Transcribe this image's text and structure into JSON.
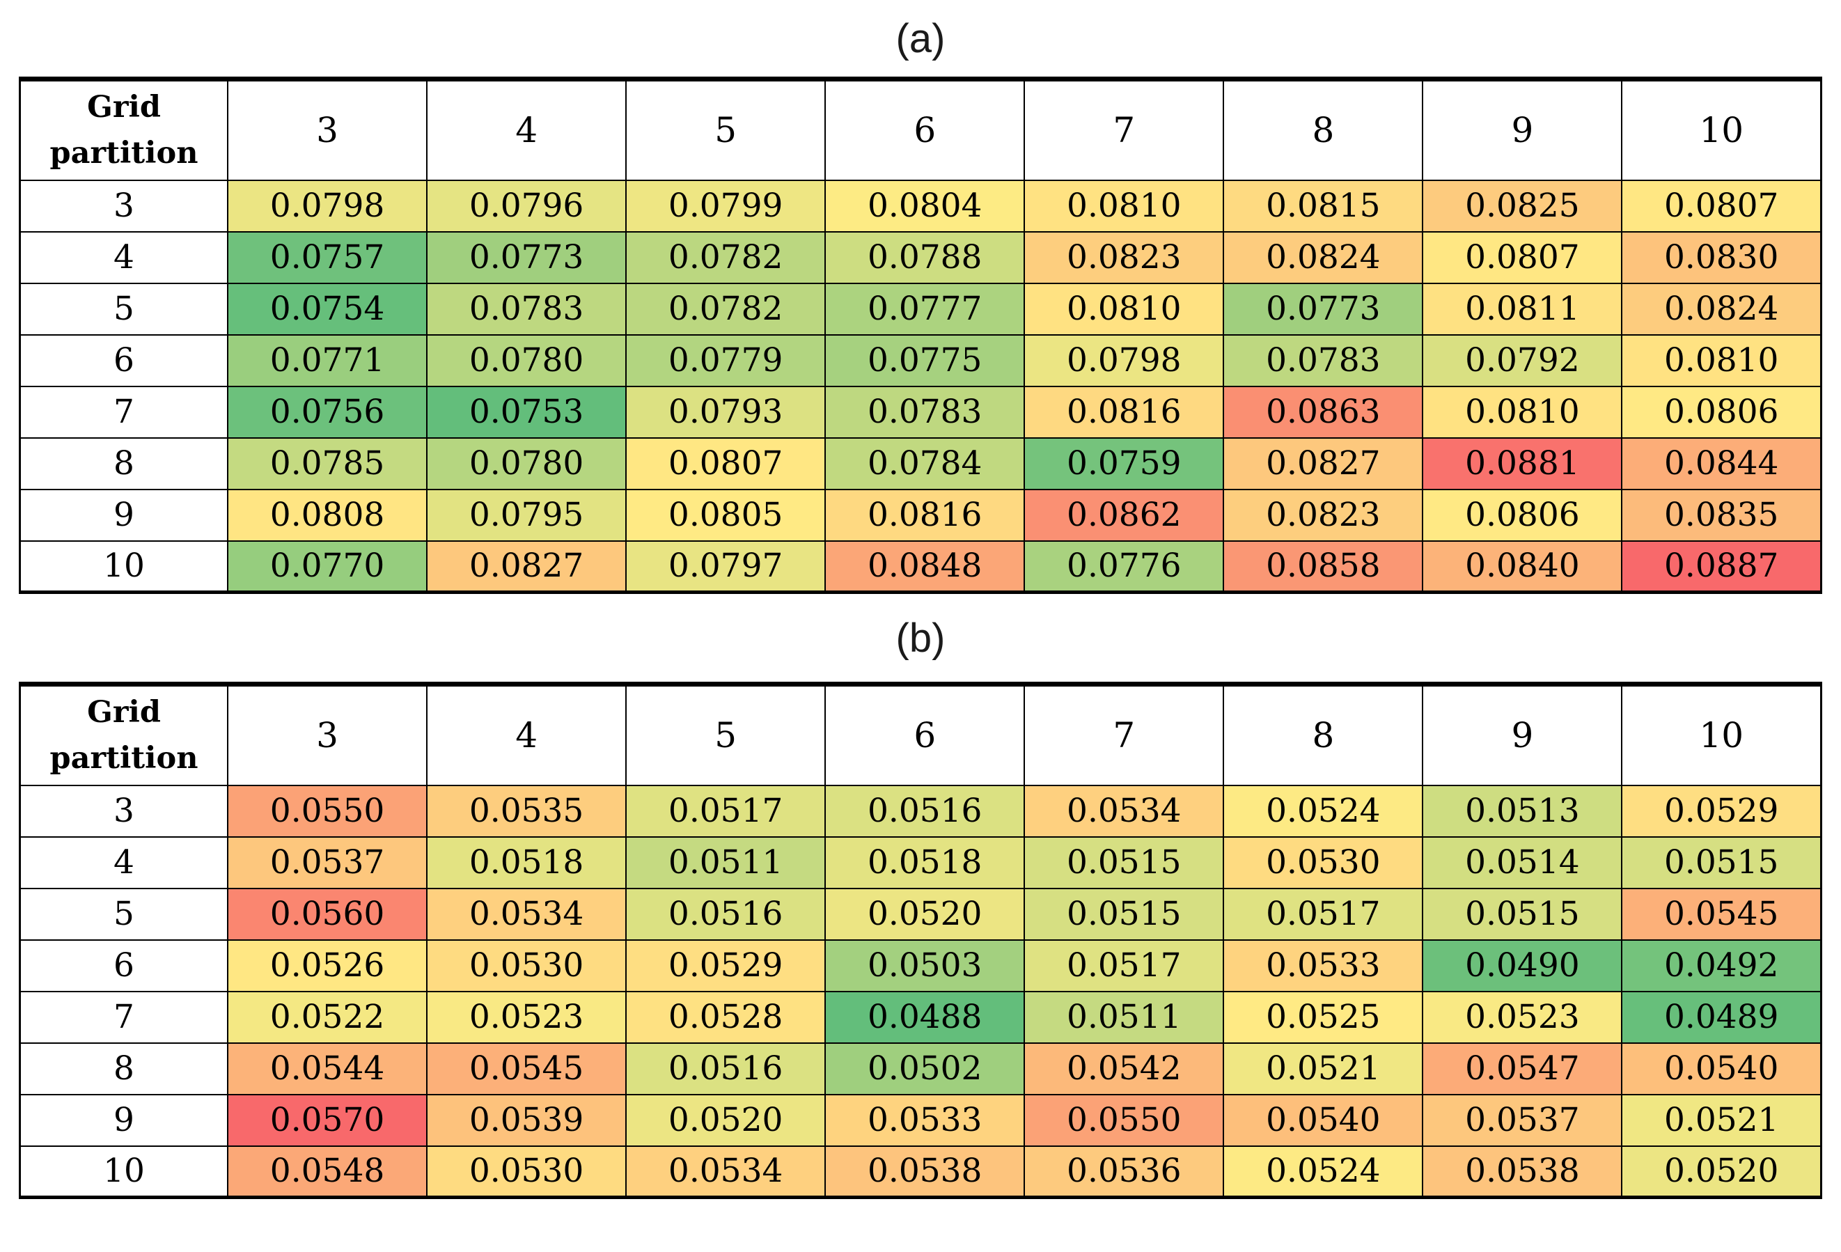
{
  "figure": {
    "label_a": "(a)",
    "label_b": "(b)"
  },
  "chart_data": [
    {
      "type": "heatmap",
      "title": "(a)",
      "corner_label": "Grid partition",
      "columns": [
        "3",
        "4",
        "5",
        "6",
        "7",
        "8",
        "9",
        "10"
      ],
      "rows": [
        "3",
        "4",
        "5",
        "6",
        "7",
        "8",
        "9",
        "10"
      ],
      "values": [
        [
          "0.0798",
          "0.0796",
          "0.0799",
          "0.0804",
          "0.0810",
          "0.0815",
          "0.0825",
          "0.0807"
        ],
        [
          "0.0757",
          "0.0773",
          "0.0782",
          "0.0788",
          "0.0823",
          "0.0824",
          "0.0807",
          "0.0830"
        ],
        [
          "0.0754",
          "0.0783",
          "0.0782",
          "0.0777",
          "0.0810",
          "0.0773",
          "0.0811",
          "0.0824"
        ],
        [
          "0.0771",
          "0.0780",
          "0.0779",
          "0.0775",
          "0.0798",
          "0.0783",
          "0.0792",
          "0.0810"
        ],
        [
          "0.0756",
          "0.0753",
          "0.0793",
          "0.0783",
          "0.0816",
          "0.0863",
          "0.0810",
          "0.0806"
        ],
        [
          "0.0785",
          "0.0780",
          "0.0807",
          "0.0784",
          "0.0759",
          "0.0827",
          "0.0881",
          "0.0844"
        ],
        [
          "0.0808",
          "0.0795",
          "0.0805",
          "0.0816",
          "0.0862",
          "0.0823",
          "0.0806",
          "0.0835"
        ],
        [
          "0.0770",
          "0.0827",
          "0.0797",
          "0.0848",
          "0.0776",
          "0.0858",
          "0.0840",
          "0.0887"
        ]
      ],
      "colorscale": {
        "min_color": "#63BE7B",
        "mid_color": "#FFEB84",
        "max_color": "#F8696B",
        "midpoint": "median"
      }
    },
    {
      "type": "heatmap",
      "title": "(b)",
      "corner_label": "Grid partition",
      "columns": [
        "3",
        "4",
        "5",
        "6",
        "7",
        "8",
        "9",
        "10"
      ],
      "rows": [
        "3",
        "4",
        "5",
        "6",
        "7",
        "8",
        "9",
        "10"
      ],
      "values": [
        [
          "0.0550",
          "0.0535",
          "0.0517",
          "0.0516",
          "0.0534",
          "0.0524",
          "0.0513",
          "0.0529"
        ],
        [
          "0.0537",
          "0.0518",
          "0.0511",
          "0.0518",
          "0.0515",
          "0.0530",
          "0.0514",
          "0.0515"
        ],
        [
          "0.0560",
          "0.0534",
          "0.0516",
          "0.0520",
          "0.0515",
          "0.0517",
          "0.0515",
          "0.0545"
        ],
        [
          "0.0526",
          "0.0530",
          "0.0529",
          "0.0503",
          "0.0517",
          "0.0533",
          "0.0490",
          "0.0492"
        ],
        [
          "0.0522",
          "0.0523",
          "0.0528",
          "0.0488",
          "0.0511",
          "0.0525",
          "0.0523",
          "0.0489"
        ],
        [
          "0.0544",
          "0.0545",
          "0.0516",
          "0.0502",
          "0.0542",
          "0.0521",
          "0.0547",
          "0.0540"
        ],
        [
          "0.0570",
          "0.0539",
          "0.0520",
          "0.0533",
          "0.0550",
          "0.0540",
          "0.0537",
          "0.0521"
        ],
        [
          "0.0548",
          "0.0530",
          "0.0534",
          "0.0538",
          "0.0536",
          "0.0524",
          "0.0538",
          "0.0520"
        ]
      ],
      "colorscale": {
        "min_color": "#63BE7B",
        "mid_color": "#FFEB84",
        "max_color": "#F8696B",
        "midpoint": "median"
      }
    }
  ]
}
